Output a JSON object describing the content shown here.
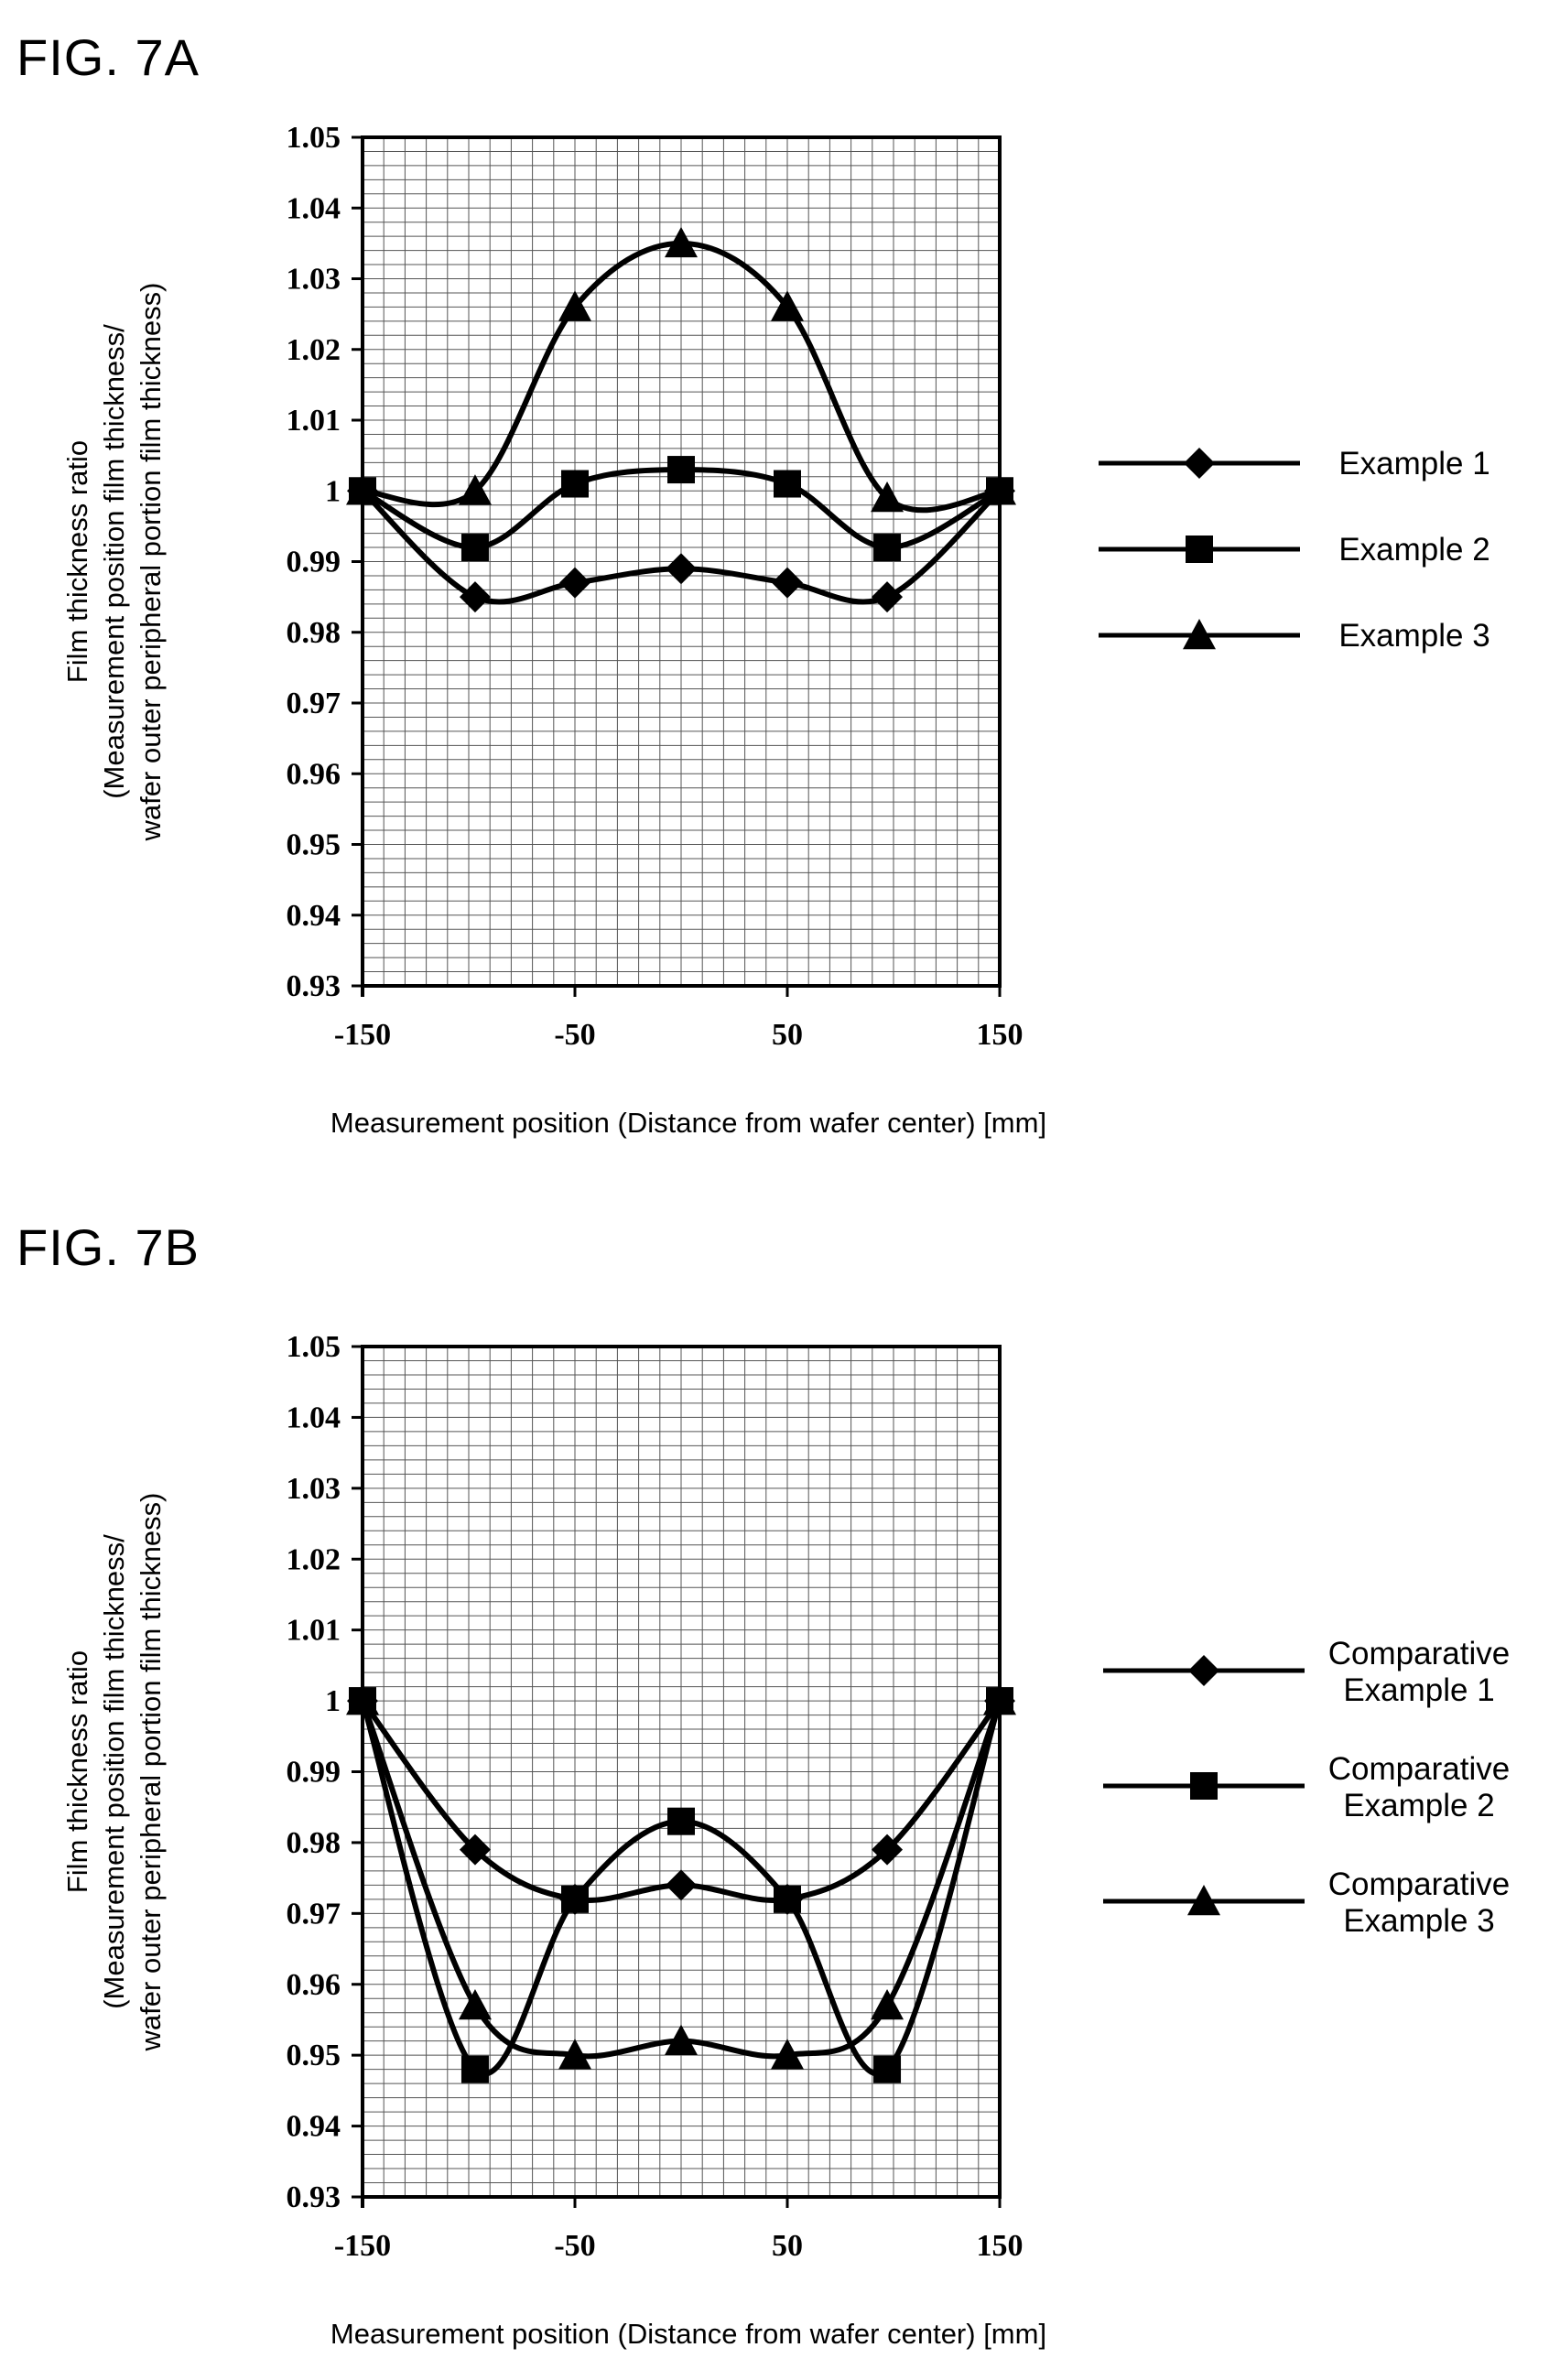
{
  "chart_data": [
    {
      "figure_label": "FIG. 7A",
      "type": "line",
      "xlabel": "Measurement position (Distance from wafer center) [mm]",
      "ylabel": [
        "Film thickness ratio",
        "(Measurement position film thickness/",
        "wafer outer peripheral portion film thickness)"
      ],
      "xlim": [
        -150,
        150
      ],
      "ylim": [
        0.93,
        1.05
      ],
      "x_ticks": [
        "-150",
        "-50",
        "50",
        "150"
      ],
      "x_tick_values": [
        -150,
        -50,
        50,
        150
      ],
      "y_ticks": [
        "1.05",
        "1.04",
        "1.03",
        "1.02",
        "1.01",
        "1",
        "0.99",
        "0.98",
        "0.97",
        "0.96",
        "0.95",
        "0.94",
        "0.93"
      ],
      "y_tick_values": [
        1.05,
        1.04,
        1.03,
        1.02,
        1.01,
        1.0,
        0.99,
        0.98,
        0.97,
        0.96,
        0.95,
        0.94,
        0.93
      ],
      "grid": true,
      "legend_position": "right",
      "x": [
        -150,
        -97,
        -50,
        0,
        50,
        97,
        150
      ],
      "series": [
        {
          "name": "Example 1",
          "marker": "diamond",
          "values": [
            1.0,
            0.985,
            0.987,
            0.989,
            0.987,
            0.985,
            1.0
          ]
        },
        {
          "name": "Example 2",
          "marker": "square",
          "values": [
            1.0,
            0.992,
            1.001,
            1.003,
            1.001,
            0.992,
            1.0
          ]
        },
        {
          "name": "Example 3",
          "marker": "triangle",
          "values": [
            1.0,
            1.0,
            1.026,
            1.035,
            1.026,
            0.999,
            1.0
          ]
        }
      ]
    },
    {
      "figure_label": "FIG. 7B",
      "type": "line",
      "xlabel": "Measurement position (Distance from wafer center) [mm]",
      "ylabel": [
        "Film thickness ratio",
        "(Measurement position film thickness/",
        "wafer outer peripheral portion film thickness)"
      ],
      "xlim": [
        -150,
        150
      ],
      "ylim": [
        0.93,
        1.05
      ],
      "x_ticks": [
        "-150",
        "-50",
        "50",
        "150"
      ],
      "x_tick_values": [
        -150,
        -50,
        50,
        150
      ],
      "y_ticks": [
        "1.05",
        "1.04",
        "1.03",
        "1.02",
        "1.01",
        "1",
        "0.99",
        "0.98",
        "0.97",
        "0.96",
        "0.95",
        "0.94",
        "0.93"
      ],
      "y_tick_values": [
        1.05,
        1.04,
        1.03,
        1.02,
        1.01,
        1.0,
        0.99,
        0.98,
        0.97,
        0.96,
        0.95,
        0.94,
        0.93
      ],
      "grid": true,
      "legend_position": "right",
      "x": [
        -150,
        -97,
        -50,
        0,
        50,
        97,
        150
      ],
      "series": [
        {
          "name": "Comparative Example 1",
          "name_lines": [
            "Comparative",
            "Example 1"
          ],
          "marker": "diamond",
          "values": [
            1.0,
            0.979,
            0.972,
            0.974,
            0.972,
            0.979,
            1.0
          ]
        },
        {
          "name": "Comparative Example 2",
          "name_lines": [
            "Comparative",
            "Example 2"
          ],
          "marker": "square",
          "values": [
            1.0,
            0.948,
            0.972,
            0.983,
            0.972,
            0.948,
            1.0
          ]
        },
        {
          "name": "Comparative Example 3",
          "name_lines": [
            "Comparative",
            "Example 3"
          ],
          "marker": "triangle",
          "values": [
            1.0,
            0.957,
            0.95,
            0.952,
            0.95,
            0.957,
            1.0
          ]
        }
      ]
    }
  ]
}
